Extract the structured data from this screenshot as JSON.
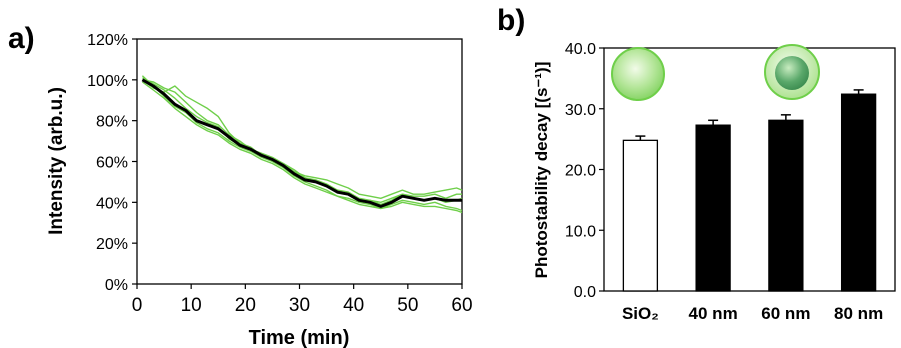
{
  "colors": {
    "trace_green": "#6fcf4a",
    "mean_black": "#000000",
    "bar_white": "#ffffff",
    "bar_black": "#000000",
    "particle_green": "#74cf57"
  },
  "icons": [
    "solid-green-nanoparticle-icon",
    "core-shell-green-nanoparticle-icon"
  ],
  "chart_data": [
    {
      "panel_label": "a)",
      "type": "line",
      "xlabel": "Time (min)",
      "ylabel": "Intensity (arb.u.)",
      "xlim": [
        0,
        60
      ],
      "ylim": [
        0,
        120
      ],
      "xticks": [
        0,
        10,
        20,
        30,
        40,
        50,
        60
      ],
      "xtick_labels": [
        "0",
        "10",
        "20",
        "30",
        "40",
        "50",
        "60"
      ],
      "yticks": [
        0,
        20,
        40,
        60,
        80,
        100,
        120
      ],
      "ytick_labels": [
        "0%",
        "20%",
        "40%",
        "60%",
        "80%",
        "100%",
        "120%"
      ],
      "grid": false,
      "x": [
        1,
        3,
        5,
        7,
        9,
        11,
        13,
        15,
        17,
        19,
        21,
        23,
        25,
        27,
        29,
        31,
        33,
        35,
        37,
        39,
        41,
        43,
        45,
        47,
        49,
        51,
        53,
        55,
        57,
        59,
        60
      ],
      "series": [
        {
          "style": "mean",
          "values": [
            100,
            97,
            93,
            88,
            85,
            80,
            78,
            76,
            72,
            68,
            66,
            63,
            61,
            58,
            54,
            51,
            50,
            48,
            45,
            44,
            41,
            40,
            38,
            40,
            43,
            42,
            41,
            42,
            41,
            41,
            41
          ]
        },
        {
          "style": "trace",
          "values": [
            101,
            98,
            95,
            91,
            86,
            82,
            79,
            77,
            71,
            68,
            65,
            62,
            60,
            57,
            53,
            50,
            48,
            46,
            43,
            41,
            39,
            38,
            37,
            39,
            41,
            40,
            39,
            40,
            38,
            37,
            36
          ]
        },
        {
          "style": "trace",
          "values": [
            100,
            96,
            94,
            97,
            92,
            89,
            86,
            82,
            74,
            69,
            67,
            63,
            61,
            58,
            55,
            53,
            52,
            51,
            49,
            47,
            44,
            43,
            42,
            44,
            46,
            44,
            44,
            45,
            46,
            47,
            46
          ]
        },
        {
          "style": "trace",
          "values": [
            102,
            97,
            92,
            87,
            84,
            79,
            76,
            74,
            70,
            67,
            65,
            63,
            61,
            59,
            55,
            52,
            51,
            49,
            46,
            45,
            42,
            41,
            40,
            42,
            44,
            43,
            43,
            44,
            42,
            44,
            44
          ]
        },
        {
          "style": "trace",
          "values": [
            99,
            95,
            91,
            86,
            82,
            78,
            75,
            73,
            69,
            66,
            64,
            61,
            59,
            56,
            52,
            49,
            47,
            45,
            43,
            42,
            40,
            39,
            37,
            38,
            40,
            39,
            38,
            38,
            37,
            36,
            35
          ]
        },
        {
          "style": "trace",
          "values": [
            100,
            99,
            96,
            94,
            89,
            84,
            80,
            78,
            73,
            70,
            66,
            64,
            62,
            59,
            56,
            52,
            50,
            48,
            45,
            44,
            41,
            41,
            39,
            41,
            44,
            42,
            41,
            42,
            40,
            41,
            42
          ]
        }
      ]
    },
    {
      "panel_label": "b)",
      "type": "bar",
      "ylabel": "Photostability decay [(s⁻¹)]",
      "ylim": [
        0,
        40
      ],
      "yticks": [
        0,
        10,
        20,
        30,
        40
      ],
      "ytick_labels": [
        "0.0",
        "10.0",
        "20.0",
        "30.0",
        "40.0"
      ],
      "grid": false,
      "categories": [
        "SiO₂",
        "40 nm",
        "60 nm",
        "80 nm"
      ],
      "values": [
        24.8,
        27.3,
        28.1,
        32.4
      ],
      "errors": [
        0.7,
        0.8,
        0.9,
        0.7
      ],
      "fills": [
        "white",
        "black",
        "black",
        "black"
      ]
    }
  ]
}
